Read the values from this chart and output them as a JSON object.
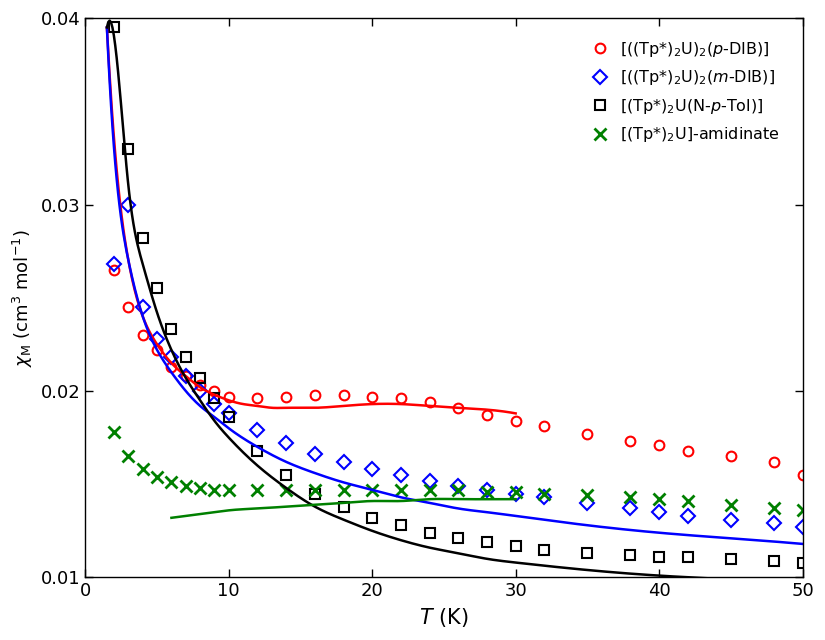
{
  "xlabel": "T (K)",
  "xlim": [
    0,
    50
  ],
  "ylim": [
    0.01,
    0.04
  ],
  "yticks": [
    0.01,
    0.02,
    0.03,
    0.04
  ],
  "xticks": [
    0,
    10,
    20,
    30,
    40,
    50
  ],
  "legend_labels": [
    "[((Tp*)$_2$U)$_2$($p$-DIB)]",
    "[((Tp*)$_2$U)$_2$($m$-DIB)]",
    "[(Tp*)$_2$U(N-$p$-Tol)]",
    "[(Tp*)$_2$U]-amidinate"
  ],
  "colors": {
    "red": "#ff0000",
    "blue": "#0000ff",
    "black": "#000000",
    "green": "#008000"
  },
  "series_red_circles": {
    "T": [
      2,
      3,
      4,
      5,
      6,
      7,
      8,
      9,
      10,
      12,
      14,
      16,
      18,
      20,
      22,
      24,
      26,
      28,
      30,
      32,
      35,
      38,
      40,
      42,
      45,
      48,
      50
    ],
    "chi": [
      0.0265,
      0.0245,
      0.023,
      0.0222,
      0.0213,
      0.0208,
      0.0203,
      0.02,
      0.0197,
      0.0196,
      0.0197,
      0.0198,
      0.0198,
      0.0197,
      0.0196,
      0.0194,
      0.0191,
      0.0187,
      0.0184,
      0.0181,
      0.0177,
      0.0173,
      0.0171,
      0.0168,
      0.0165,
      0.0162,
      0.0155
    ]
  },
  "series_blue_diamonds": {
    "T": [
      2,
      3,
      4,
      5,
      6,
      7,
      8,
      9,
      10,
      12,
      14,
      16,
      18,
      20,
      22,
      24,
      26,
      28,
      30,
      32,
      35,
      38,
      40,
      42,
      45,
      48,
      50
    ],
    "chi": [
      0.0268,
      0.03,
      0.0245,
      0.0228,
      0.0218,
      0.0208,
      0.02,
      0.0193,
      0.0188,
      0.0179,
      0.0172,
      0.0166,
      0.0162,
      0.0158,
      0.0155,
      0.0152,
      0.0149,
      0.0147,
      0.0145,
      0.0143,
      0.014,
      0.0137,
      0.0135,
      0.0133,
      0.0131,
      0.0129,
      0.0127
    ]
  },
  "series_black_squares": {
    "T": [
      2,
      3,
      4,
      5,
      6,
      7,
      8,
      9,
      10,
      12,
      14,
      16,
      18,
      20,
      22,
      24,
      26,
      28,
      30,
      32,
      35,
      38,
      40,
      42,
      45,
      48,
      50
    ],
    "chi": [
      0.0395,
      0.033,
      0.0282,
      0.0255,
      0.0233,
      0.0218,
      0.0207,
      0.0196,
      0.0186,
      0.0168,
      0.0155,
      0.0145,
      0.0138,
      0.0132,
      0.0128,
      0.0124,
      0.0121,
      0.0119,
      0.0117,
      0.0115,
      0.0113,
      0.0112,
      0.0111,
      0.0111,
      0.011,
      0.0109,
      0.0108
    ]
  },
  "series_green_x": {
    "T": [
      2,
      3,
      4,
      5,
      6,
      7,
      8,
      9,
      10,
      12,
      14,
      16,
      18,
      20,
      22,
      24,
      26,
      28,
      30,
      32,
      35,
      38,
      40,
      42,
      45,
      48,
      50
    ],
    "chi": [
      0.0178,
      0.0165,
      0.0158,
      0.0154,
      0.0151,
      0.0149,
      0.0148,
      0.0147,
      0.0147,
      0.0147,
      0.0147,
      0.0147,
      0.0147,
      0.0147,
      0.0147,
      0.0147,
      0.0147,
      0.0146,
      0.0146,
      0.0145,
      0.0144,
      0.0143,
      0.0142,
      0.0141,
      0.0139,
      0.0137,
      0.0136
    ]
  },
  "fit_red": {
    "T_vals": [
      1.5,
      2,
      3,
      4,
      5,
      6,
      7,
      8,
      9,
      10,
      11,
      12,
      13,
      14,
      16,
      18,
      20,
      22,
      24,
      26,
      28,
      30
    ],
    "chi_vals": [
      0.0395,
      0.0335,
      0.027,
      0.024,
      0.0225,
      0.0215,
      0.0208,
      0.0202,
      0.0198,
      0.0195,
      0.0193,
      0.0192,
      0.0191,
      0.0191,
      0.0191,
      0.0192,
      0.0193,
      0.0193,
      0.0192,
      0.0191,
      0.019,
      0.0188
    ],
    "color": "#ff0000"
  },
  "fit_blue": {
    "T_vals": [
      1.5,
      2,
      3,
      4,
      5,
      6,
      7,
      8,
      9,
      10,
      12,
      14,
      16,
      18,
      20,
      22,
      24,
      26,
      28,
      30,
      35,
      40,
      45,
      50
    ],
    "chi_vals": [
      0.0395,
      0.033,
      0.027,
      0.024,
      0.0222,
      0.021,
      0.02,
      0.0192,
      0.0186,
      0.018,
      0.017,
      0.0162,
      0.0156,
      0.0151,
      0.0147,
      0.0143,
      0.014,
      0.0137,
      0.0135,
      0.0133,
      0.0128,
      0.0124,
      0.0121,
      0.0118
    ],
    "color": "#0000ff"
  },
  "fit_black": {
    "T_vals": [
      1.5,
      2,
      3,
      4,
      5,
      6,
      7,
      8,
      9,
      10,
      12,
      14,
      16,
      18,
      20,
      22,
      24,
      26,
      28,
      30,
      35,
      40,
      45,
      50
    ],
    "chi_vals": [
      0.0395,
      0.039,
      0.031,
      0.0268,
      0.0242,
      0.0222,
      0.0207,
      0.0195,
      0.0184,
      0.0175,
      0.016,
      0.0148,
      0.0138,
      0.0131,
      0.0125,
      0.012,
      0.0116,
      0.0113,
      0.011,
      0.0108,
      0.0104,
      0.0101,
      0.0099,
      0.0097
    ],
    "color": "#000000"
  },
  "fit_green": {
    "T_vals": [
      6,
      7,
      8,
      9,
      10,
      12,
      14,
      16,
      18,
      20,
      22,
      24,
      26,
      28,
      30
    ],
    "chi_vals": [
      0.0132,
      0.0133,
      0.0134,
      0.0135,
      0.0136,
      0.0137,
      0.0138,
      0.0139,
      0.014,
      0.0141,
      0.0141,
      0.0142,
      0.0142,
      0.0142,
      0.0142
    ],
    "color": "#008000"
  }
}
